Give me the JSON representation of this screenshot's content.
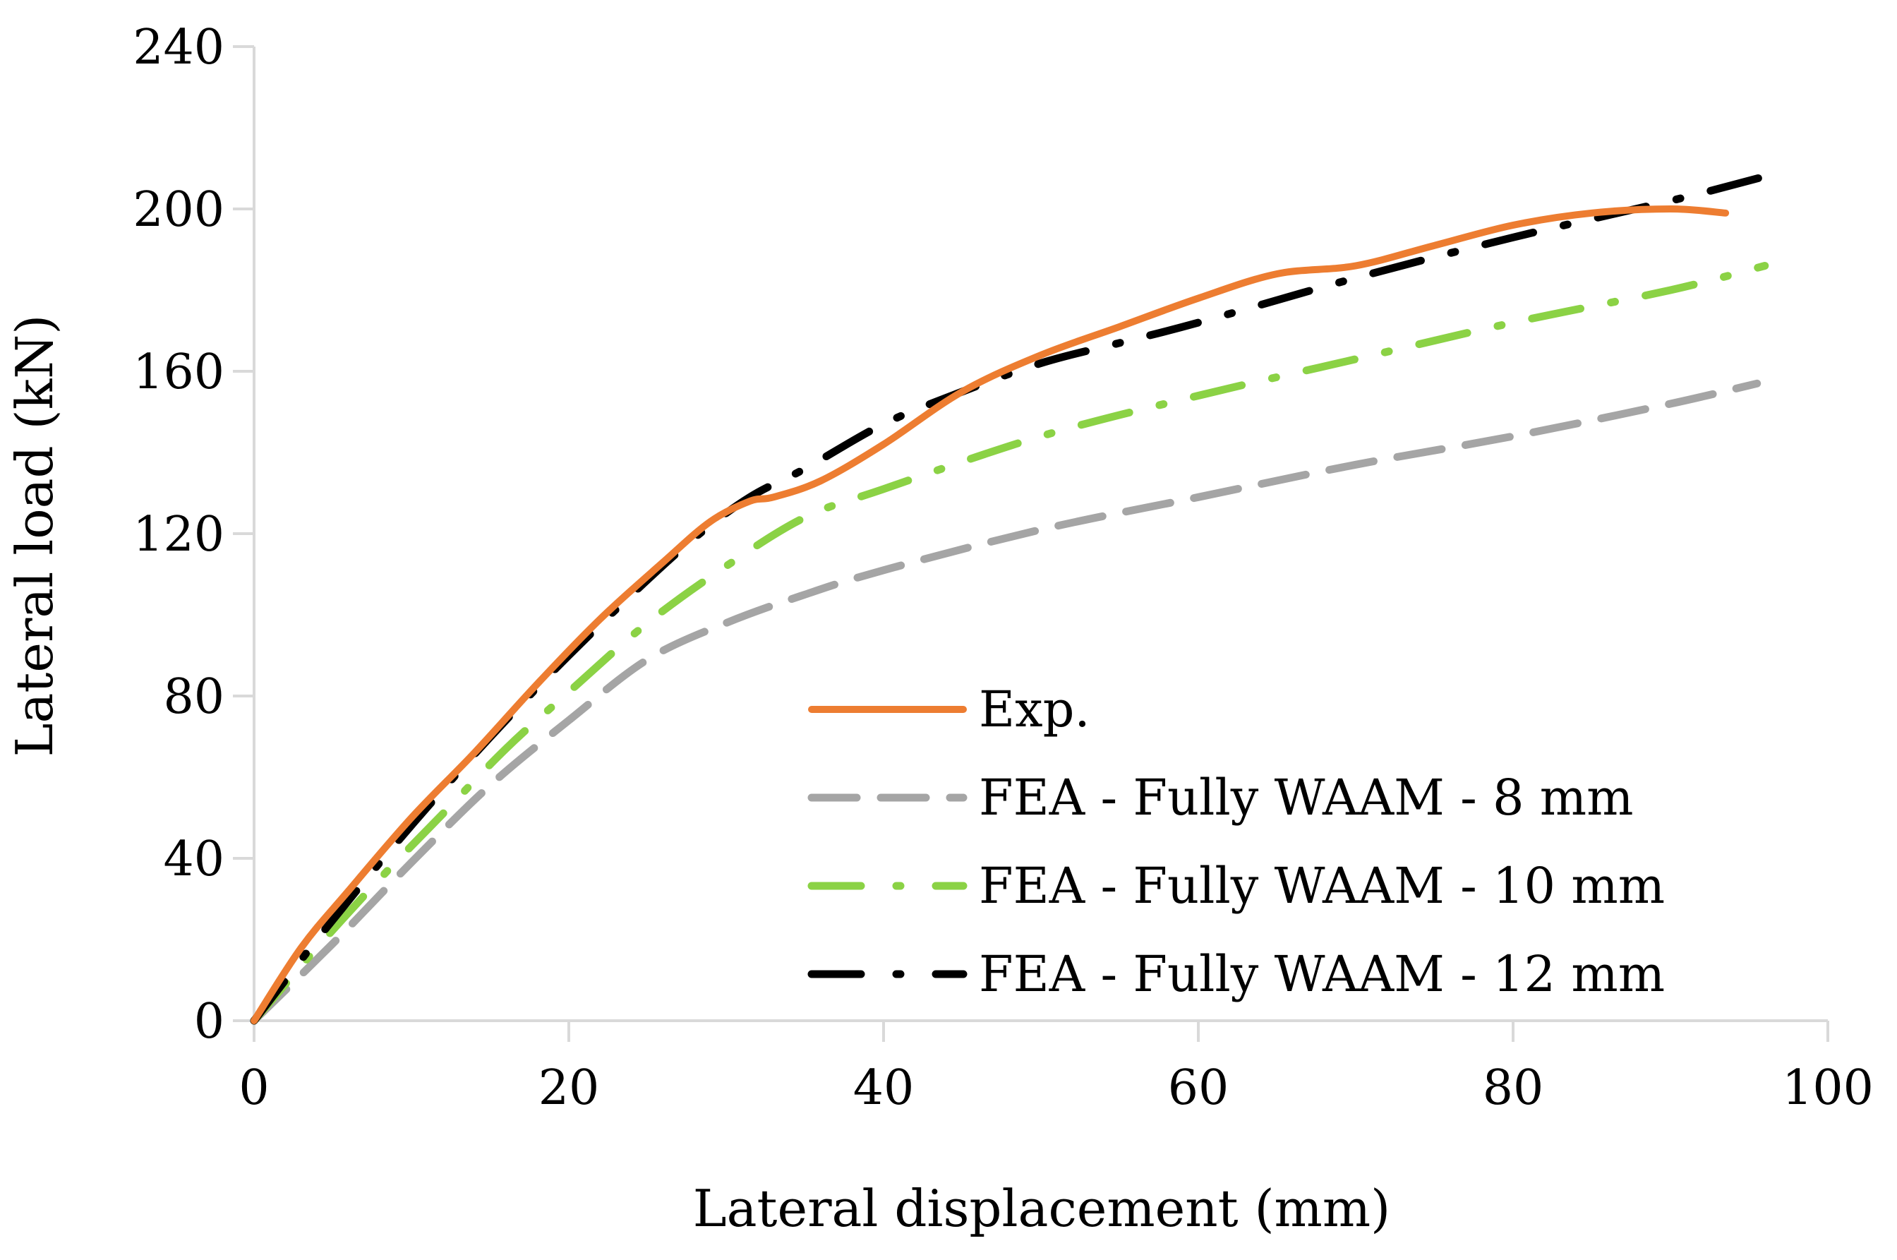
{
  "chart_data": {
    "type": "line",
    "title": "",
    "xlabel": "Lateral displacement (mm)",
    "ylabel": "Lateral load (kN)",
    "xlim": [
      0,
      100
    ],
    "ylim": [
      0,
      240
    ],
    "xticks": [
      "0",
      "20",
      "40",
      "60",
      "80",
      "100"
    ],
    "yticks": [
      "0",
      "40",
      "80",
      "120",
      "160",
      "200",
      "240"
    ],
    "grid": false,
    "legend_position": "bottom-right",
    "series": [
      {
        "name": "Exp.",
        "color": "#ED7D31",
        "style": "solid",
        "x": [
          0,
          3,
          6,
          10,
          14,
          18,
          22,
          26,
          29,
          31.5,
          33,
          36,
          40,
          45,
          50,
          55,
          60,
          65,
          70,
          75,
          80,
          85,
          90,
          93.5
        ],
        "y": [
          0,
          18,
          32,
          50,
          66,
          83,
          99,
          113,
          123,
          128,
          129,
          133,
          142,
          155,
          164,
          171,
          178,
          184,
          186,
          191,
          196,
          199,
          200,
          199
        ]
      },
      {
        "name": "FEA - Fully WAAM - 8 mm",
        "color": "#A5A5A5",
        "style": "dashed",
        "x": [
          0,
          5,
          10,
          15,
          20,
          25,
          30,
          35,
          40,
          50,
          60,
          70,
          80,
          90,
          95.5
        ],
        "y": [
          0,
          19,
          39,
          58,
          74,
          89,
          98,
          105,
          111,
          121,
          129,
          137,
          144,
          152,
          157
        ]
      },
      {
        "name": "FEA - Fully WAAM - 10 mm",
        "color": "#8BD245",
        "style": "dash-dot",
        "x": [
          0,
          4,
          8,
          12,
          16,
          20,
          25,
          30,
          35,
          40,
          50,
          60,
          70,
          80,
          90,
          96
        ],
        "y": [
          0,
          18,
          35,
          51,
          67,
          81,
          98,
          112,
          124,
          131,
          144,
          154,
          163,
          172,
          180,
          186
        ]
      },
      {
        "name": "FEA - Fully WAAM - 12 mm",
        "color": "#000000",
        "style": "dash-dot",
        "x": [
          0,
          4,
          8,
          12,
          16,
          20,
          24,
          28,
          31.5,
          35,
          40,
          45,
          50,
          55,
          60,
          70,
          80,
          90,
          96
        ],
        "y": [
          0,
          20,
          39,
          57,
          74,
          90,
          105,
          119,
          129,
          136,
          147,
          155,
          162,
          167,
          172,
          183,
          193,
          202,
          208
        ]
      }
    ]
  }
}
